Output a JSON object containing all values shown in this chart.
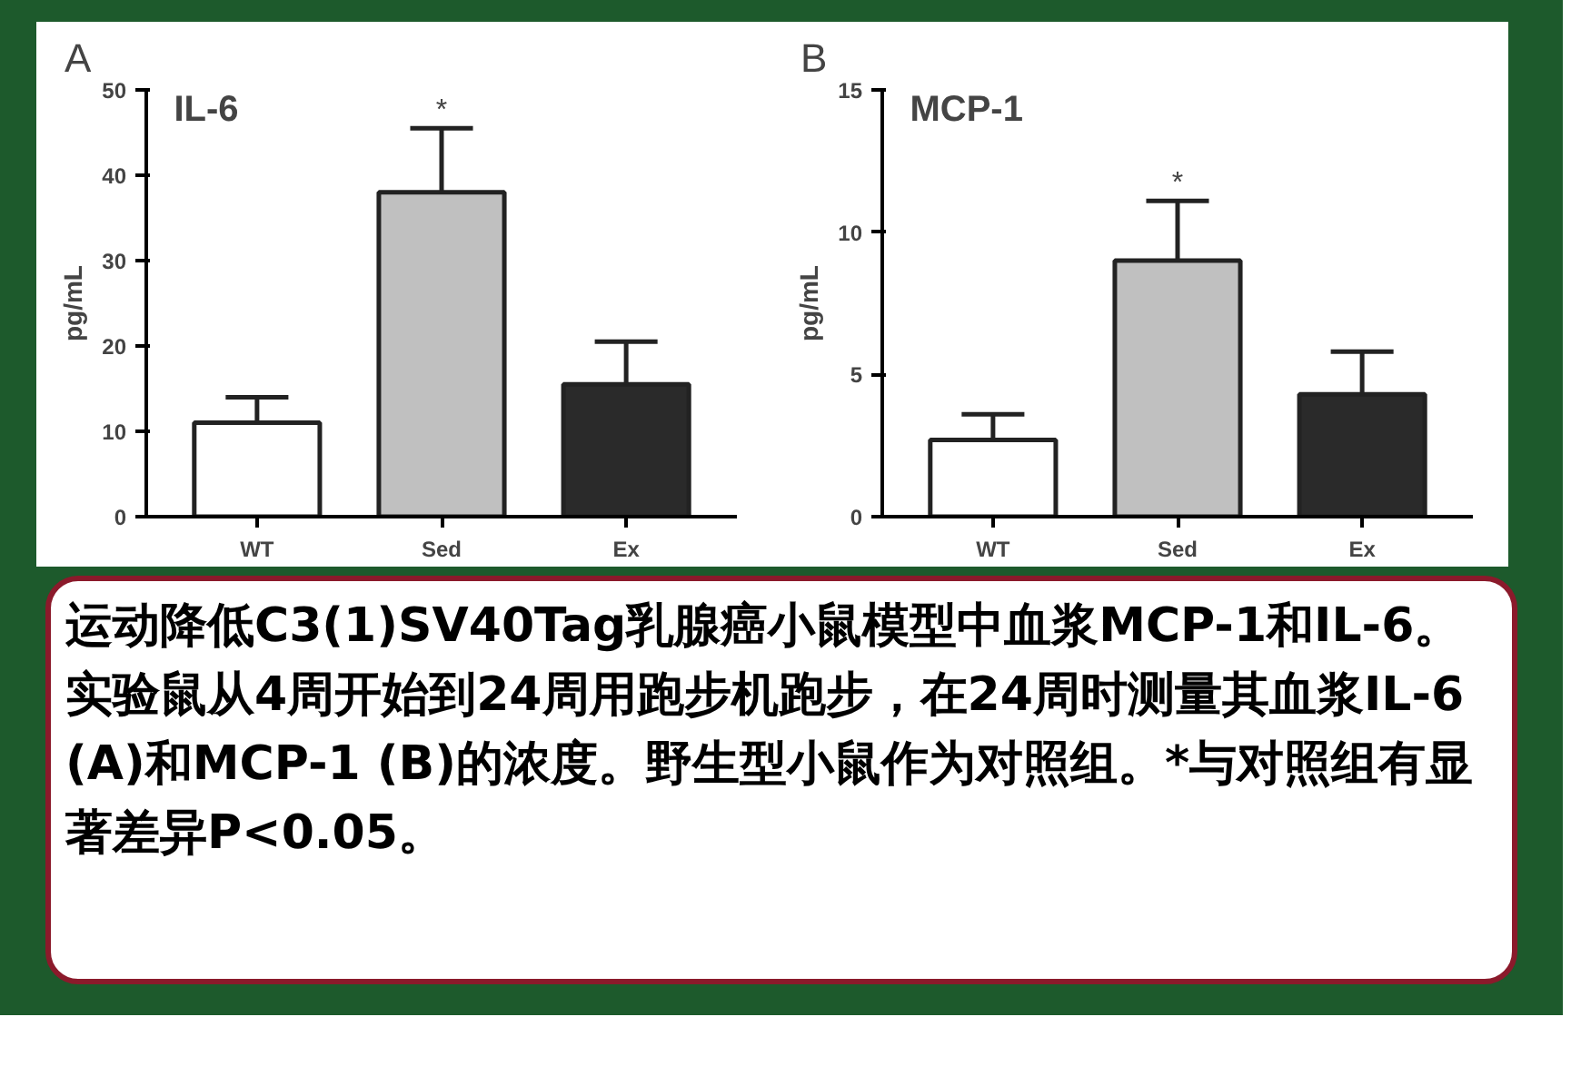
{
  "chart_data": [
    {
      "type": "bar",
      "title": "IL-6",
      "ylabel": "pg/mL",
      "categories": [
        "WT",
        "Sed",
        "Ex"
      ],
      "values": [
        11,
        38,
        15.5
      ],
      "colors": [
        "#ffffff",
        "#c0c0c0",
        "#2a2a2a"
      ],
      "errors": [
        [
          11,
          14
        ],
        [
          38,
          45.5
        ],
        [
          15.5,
          20.5
        ]
      ],
      "ylim": [
        0,
        50
      ],
      "yticks": [
        0,
        10,
        20,
        30,
        40,
        50
      ],
      "grid": false,
      "annotations": [
        "A",
        "*"
      ]
    },
    {
      "type": "bar",
      "title": "MCP-1",
      "ylabel": "pg/mL",
      "categories": [
        "WT",
        "Sed",
        "Ex"
      ],
      "values": [
        2.7,
        9.0,
        4.3
      ],
      "colors": [
        "#ffffff",
        "#c0c0c0",
        "#2a2a2a"
      ],
      "errors": [
        [
          2.7,
          3.6
        ],
        [
          9.0,
          11.1
        ],
        [
          4.3,
          5.8
        ]
      ],
      "ylim": [
        0,
        15
      ],
      "yticks": [
        0,
        5,
        10,
        15
      ],
      "grid": false,
      "annotations": [
        "B",
        "*"
      ]
    },
    {
      "type": "other",
      "annotations": [
        "运动降低C3(1)SV40Tag乳腺癌小鼠模型中血浆MCP-1和IL-6。实验鼠从4周开始到24周用跑步机跑步，在24周时测量其血浆IL-6 (A)和MCP-1 (B)的浓度。野生型小鼠作为对照组。*与对照组有显著差异P<0.05。"
      ]
    }
  ]
}
